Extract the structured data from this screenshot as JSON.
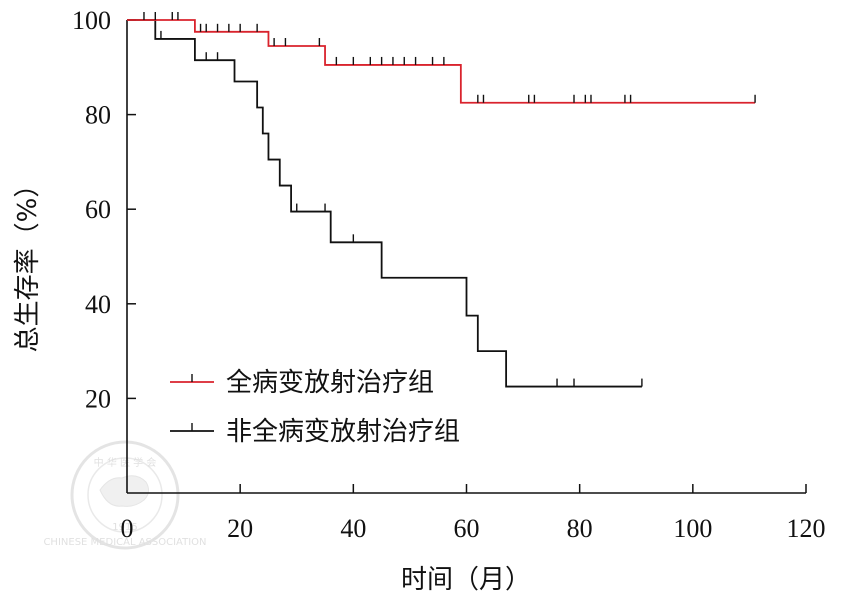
{
  "chart_data": {
    "type": "line",
    "xlabel": "时间（月）",
    "ylabel": "总生存率（%）",
    "xlim": [
      0,
      120
    ],
    "ylim": [
      0,
      100
    ],
    "xticks": [
      0,
      20,
      40,
      60,
      80,
      100,
      120
    ],
    "yticks": [
      20,
      40,
      60,
      80,
      100
    ],
    "grid": false,
    "legend_position": "bottom-left",
    "series": [
      {
        "name": "全病变放射治疗组",
        "color": "#d9232d",
        "steps": [
          [
            0,
            100
          ],
          [
            12,
            100
          ],
          [
            12,
            97.5
          ],
          [
            25,
            97.5
          ],
          [
            25,
            94.5
          ],
          [
            35,
            94.5
          ],
          [
            35,
            90.5
          ],
          [
            59,
            90.5
          ],
          [
            59,
            82.5
          ],
          [
            111,
            82.5
          ]
        ],
        "censors": [
          [
            3,
            100
          ],
          [
            5,
            100
          ],
          [
            8,
            100
          ],
          [
            9,
            100
          ],
          [
            13,
            97.5
          ],
          [
            14,
            97.5
          ],
          [
            16,
            97.5
          ],
          [
            18,
            97.5
          ],
          [
            20,
            97.5
          ],
          [
            23,
            97.5
          ],
          [
            26,
            94.5
          ],
          [
            28,
            94.5
          ],
          [
            34,
            94.5
          ],
          [
            37,
            90.5
          ],
          [
            40,
            90.5
          ],
          [
            43,
            90.5
          ],
          [
            45,
            90.5
          ],
          [
            47,
            90.5
          ],
          [
            49,
            90.5
          ],
          [
            51,
            90.5
          ],
          [
            54,
            90.5
          ],
          [
            56,
            90.5
          ],
          [
            62,
            82.5
          ],
          [
            63,
            82.5
          ],
          [
            71,
            82.5
          ],
          [
            72,
            82.5
          ],
          [
            79,
            82.5
          ],
          [
            81,
            82.5
          ],
          [
            82,
            82.5
          ],
          [
            88,
            82.5
          ],
          [
            89,
            82.5
          ],
          [
            111,
            82.5
          ]
        ]
      },
      {
        "name": "非全病变放射治疗组",
        "color": "#111111",
        "steps": [
          [
            0,
            100
          ],
          [
            5,
            100
          ],
          [
            5,
            96
          ],
          [
            12,
            96
          ],
          [
            12,
            91.5
          ],
          [
            19,
            91.5
          ],
          [
            19,
            87
          ],
          [
            23,
            87
          ],
          [
            23,
            81.5
          ],
          [
            24,
            81.5
          ],
          [
            24,
            76
          ],
          [
            25,
            76
          ],
          [
            25,
            70.5
          ],
          [
            27,
            70.5
          ],
          [
            27,
            65
          ],
          [
            29,
            65
          ],
          [
            29,
            59.5
          ],
          [
            36,
            59.5
          ],
          [
            36,
            53
          ],
          [
            45,
            53
          ],
          [
            45,
            45.5
          ],
          [
            60,
            45.5
          ],
          [
            60,
            37.5
          ],
          [
            62,
            37.5
          ],
          [
            62,
            30
          ],
          [
            67,
            30
          ],
          [
            67,
            22.5
          ],
          [
            91,
            22.5
          ]
        ],
        "censors": [
          [
            6,
            96
          ],
          [
            14,
            91.5
          ],
          [
            16,
            91.5
          ],
          [
            30,
            59.5
          ],
          [
            35,
            59.5
          ],
          [
            40,
            53
          ],
          [
            76,
            22.5
          ],
          [
            79,
            22.5
          ],
          [
            91,
            22.5
          ]
        ]
      }
    ]
  },
  "watermark": {
    "top_text": "中 华 医 学 会",
    "bottom_text": "CHINESE MEDICAL ASSOCIATION",
    "year": "1915"
  }
}
